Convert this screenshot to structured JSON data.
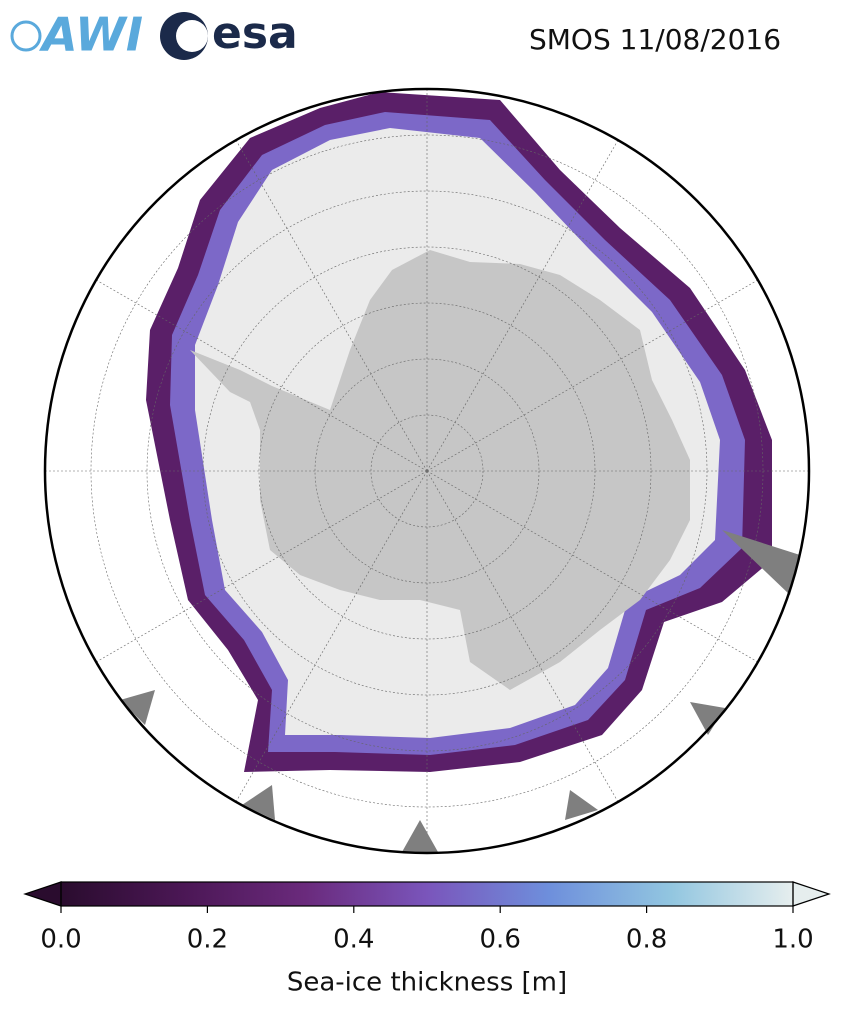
{
  "header": {
    "logo_left": "AWI",
    "logo_right": "esa",
    "title": "SMOS 11/08/2016"
  },
  "colorbar": {
    "label": "Sea-ice thickness [m]",
    "lim": [
      0,
      1
    ],
    "ticks": [
      {
        "value": 0,
        "label": "0.0"
      },
      {
        "value": 0.2,
        "label": "0.2"
      },
      {
        "value": 0.4,
        "label": "0.4"
      },
      {
        "value": 0.6,
        "label": "0.6"
      },
      {
        "value": 0.8,
        "label": "0.8"
      },
      {
        "value": 1,
        "label": "1.0"
      }
    ],
    "colors": [
      "#2a0c2e",
      "#4b1755",
      "#6a2a7c",
      "#7a55bb",
      "#6e8fdc",
      "#92c6e0",
      "#e6eeee"
    ],
    "extend": "both"
  }
}
